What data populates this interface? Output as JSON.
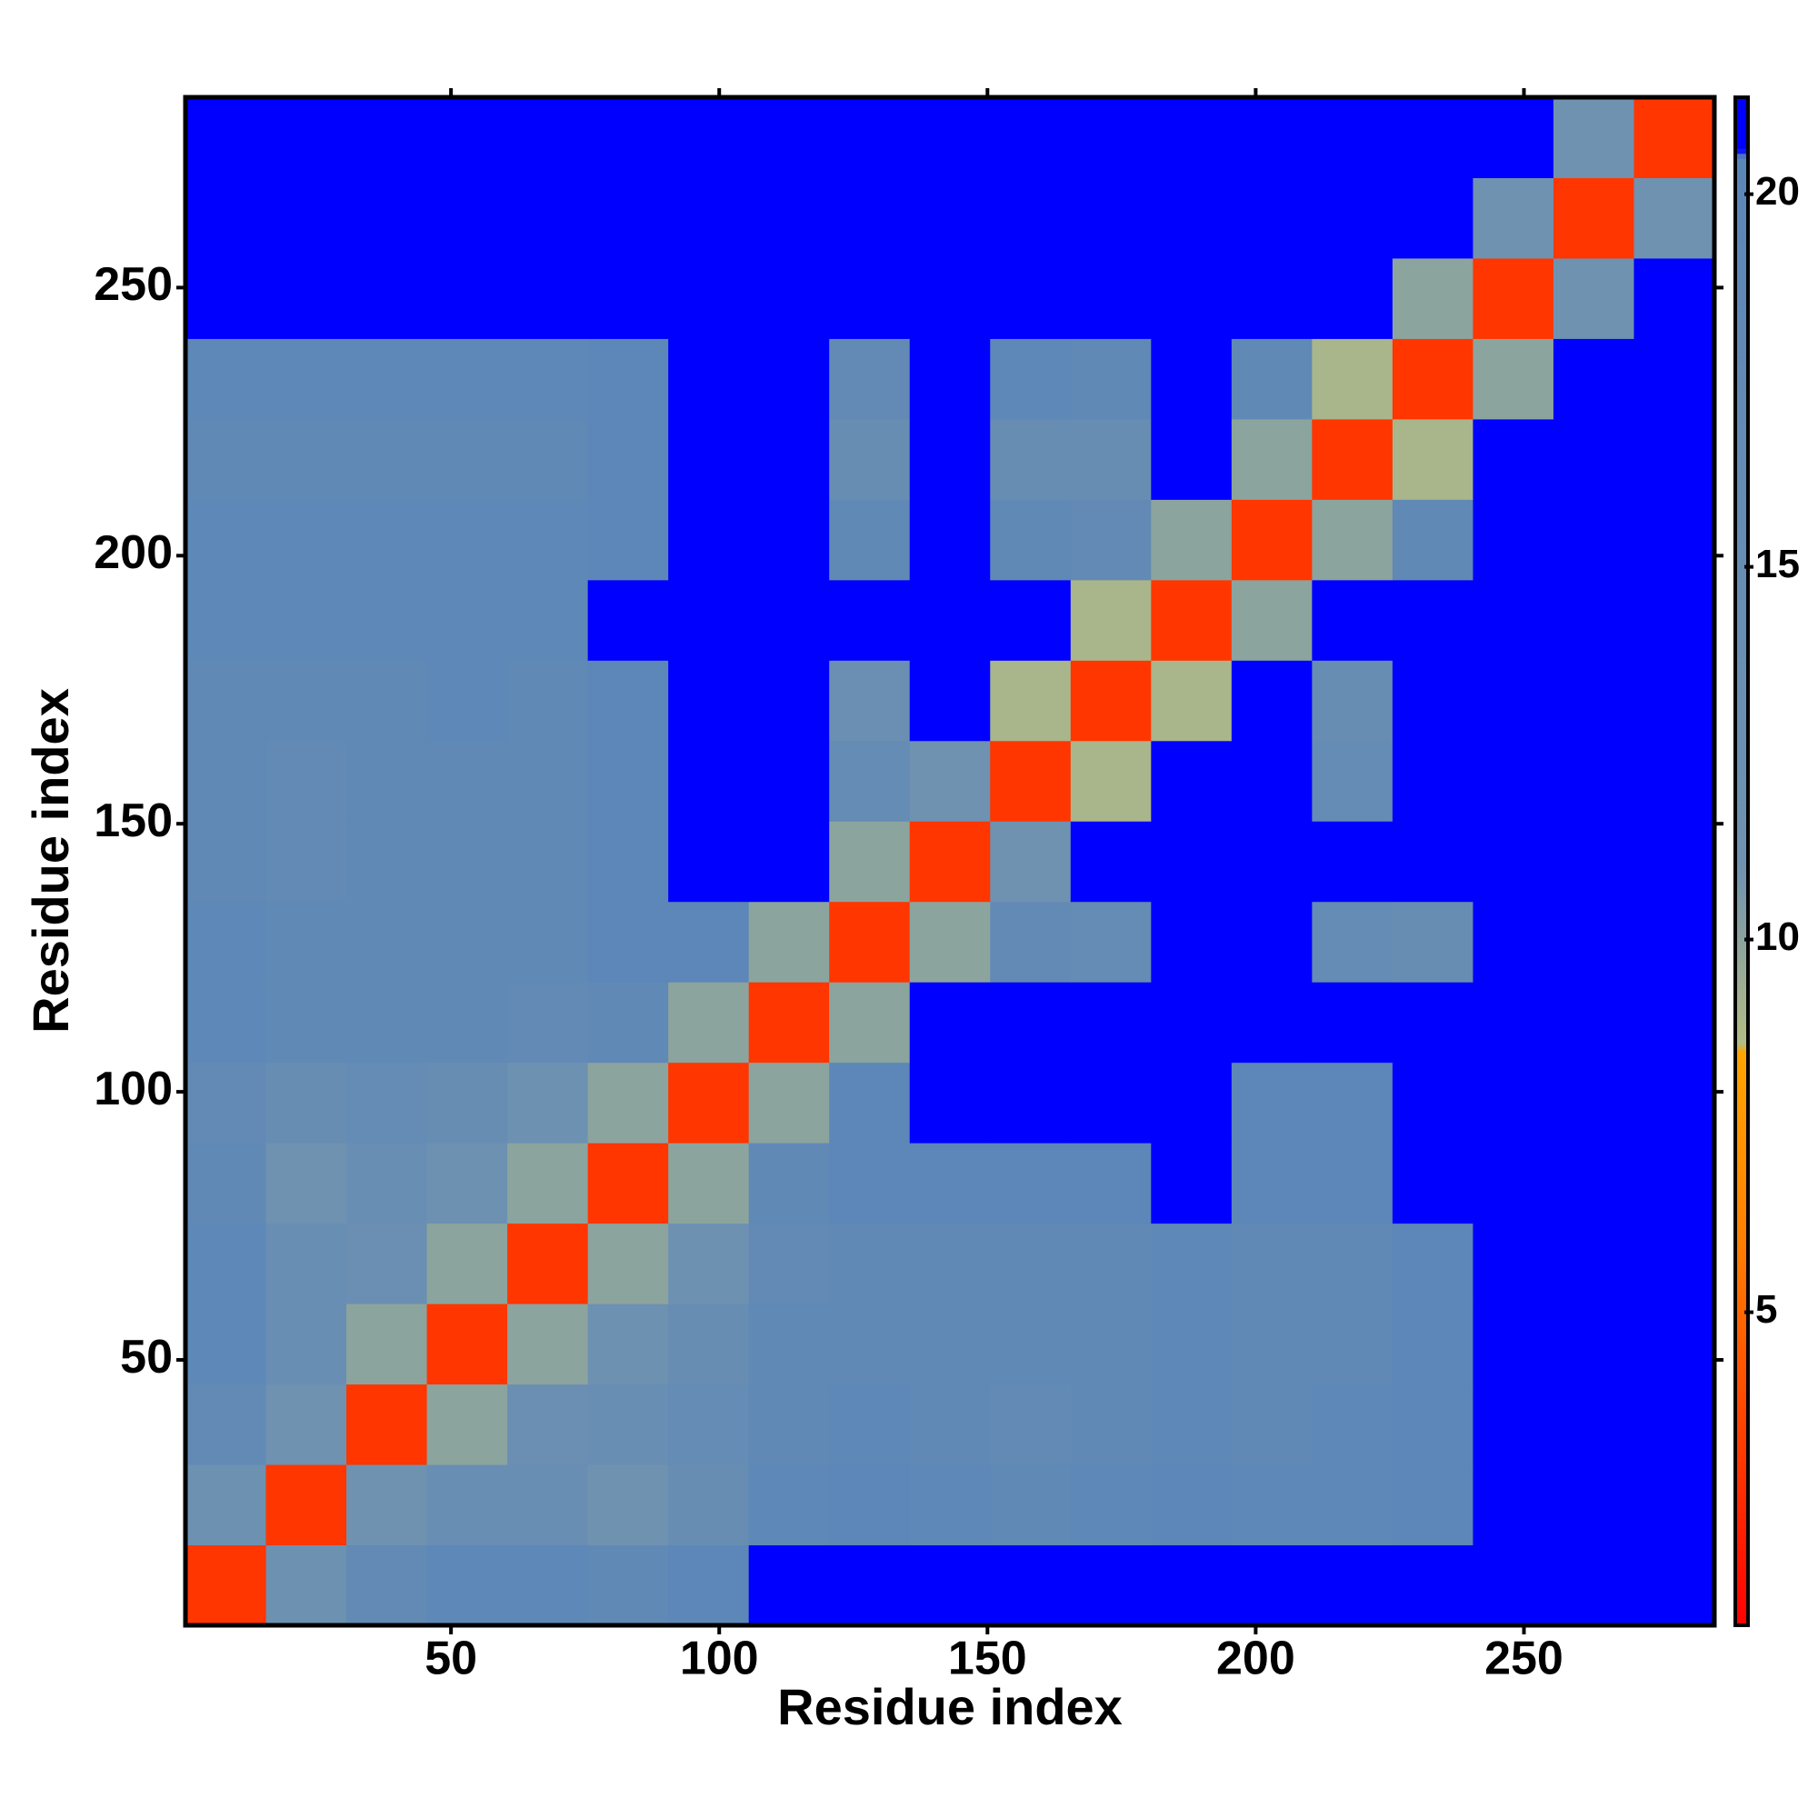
{
  "chart_data": {
    "type": "heatmap",
    "xlabel": "Residue index",
    "ylabel": "Residue index",
    "xbins": [
      0.5,
      15.5,
      30.5,
      45.5,
      60.5,
      75.5,
      90.5,
      105.5,
      120.5,
      135.5,
      150.5,
      165.5,
      180.5,
      195.5,
      210.5,
      225.5,
      240.5,
      255.5,
      270.5,
      285.5
    ],
    "ybins": [
      0.5,
      15.5,
      30.5,
      45.5,
      60.5,
      75.5,
      90.5,
      105.5,
      120.5,
      135.5,
      150.5,
      165.5,
      180.5,
      195.5,
      210.5,
      225.5,
      240.5,
      255.5,
      270.5,
      285.5
    ],
    "xlim": [
      0.5,
      285.5
    ],
    "ylim": [
      0.5,
      285.5
    ],
    "xticks": [
      50,
      100,
      150,
      200,
      250
    ],
    "yticks": [
      50,
      100,
      150,
      200,
      250
    ],
    "zlim": [
      0.8,
      21.3
    ],
    "zticks": [
      5,
      10,
      15,
      20
    ],
    "colorscale": [
      [
        0.8,
        "#ff0000"
      ],
      [
        6,
        "#ff8000"
      ],
      [
        8.5,
        "#ffa500"
      ],
      [
        8.6,
        "#b4bc84"
      ],
      [
        11,
        "#6f92b0"
      ],
      [
        20.5,
        "#5b86b8"
      ],
      [
        20.6,
        "#0000ff"
      ],
      [
        21.3,
        "#0000ff"
      ]
    ],
    "z": [
      [
        3,
        12,
        17,
        19,
        19,
        18,
        20,
        21,
        21,
        21,
        21,
        21,
        21,
        21,
        21,
        21,
        21,
        21,
        21
      ],
      [
        12,
        3,
        11,
        14,
        14,
        11,
        15,
        19,
        20,
        19,
        18,
        19,
        20,
        19,
        19,
        20,
        21,
        21,
        21
      ],
      [
        17,
        11,
        3,
        10,
        13,
        14,
        16,
        18,
        19,
        18,
        17,
        18,
        19,
        18,
        19,
        20,
        21,
        21,
        21
      ],
      [
        19,
        14,
        10,
        3,
        10,
        12,
        15,
        18,
        18,
        18,
        18,
        18,
        19,
        18,
        18,
        20,
        21,
        21,
        21
      ],
      [
        19,
        14,
        13,
        10,
        3,
        10,
        12,
        17,
        18,
        18,
        18,
        18,
        19,
        18,
        18,
        20,
        21,
        21,
        21
      ],
      [
        18,
        11,
        14,
        12,
        10,
        3,
        10,
        18,
        20,
        20,
        20,
        20,
        21,
        20,
        20,
        21,
        21,
        21,
        21
      ],
      [
        17,
        15,
        16,
        15,
        12,
        10,
        3,
        10,
        20,
        21,
        21,
        21,
        21,
        20,
        20,
        21,
        21,
        21,
        21
      ],
      [
        19,
        18,
        18,
        18,
        17,
        18,
        10,
        3,
        10,
        21,
        21,
        21,
        21,
        21,
        21,
        21,
        21,
        21,
        21
      ],
      [
        19,
        18,
        18,
        18,
        18,
        20,
        20,
        10,
        3,
        10,
        17,
        16,
        21,
        21,
        16,
        15,
        21,
        21,
        21
      ],
      [
        18,
        17,
        18,
        18,
        18,
        20,
        21,
        21,
        10,
        3,
        11,
        21,
        21,
        21,
        21,
        21,
        21,
        21,
        21
      ],
      [
        18,
        17,
        18,
        18,
        18,
        20,
        21,
        21,
        16,
        11,
        3,
        9,
        21,
        21,
        16,
        21,
        21,
        21,
        21
      ],
      [
        18,
        18,
        18,
        19,
        18,
        20,
        21,
        21,
        13,
        21,
        9,
        3,
        9,
        21,
        15,
        21,
        21,
        21,
        21
      ],
      [
        19,
        19,
        19,
        19,
        19,
        21,
        21,
        21,
        21,
        21,
        21,
        9,
        3,
        10,
        21,
        21,
        21,
        21,
        21
      ],
      [
        19,
        19,
        19,
        19,
        19,
        20,
        21,
        21,
        18,
        21,
        18,
        17,
        10,
        3,
        10,
        18,
        21,
        21,
        21
      ],
      [
        18,
        18,
        18,
        18,
        18,
        20,
        21,
        21,
        15,
        21,
        15,
        15,
        21,
        10,
        3,
        9,
        21,
        21,
        21
      ],
      [
        19,
        19,
        19,
        19,
        19,
        20,
        21,
        21,
        17,
        21,
        19,
        18,
        21,
        18,
        9,
        3,
        10,
        21,
        21
      ],
      [
        21,
        21,
        21,
        21,
        21,
        21,
        21,
        21,
        21,
        21,
        21,
        21,
        21,
        21,
        21,
        10,
        3,
        11,
        21
      ],
      [
        21,
        21,
        21,
        21,
        21,
        21,
        21,
        21,
        21,
        21,
        21,
        21,
        21,
        21,
        21,
        21,
        11,
        3,
        11
      ],
      [
        21,
        21,
        21,
        21,
        21,
        21,
        21,
        21,
        21,
        21,
        21,
        21,
        21,
        21,
        21,
        21,
        21,
        11,
        3
      ]
    ]
  }
}
